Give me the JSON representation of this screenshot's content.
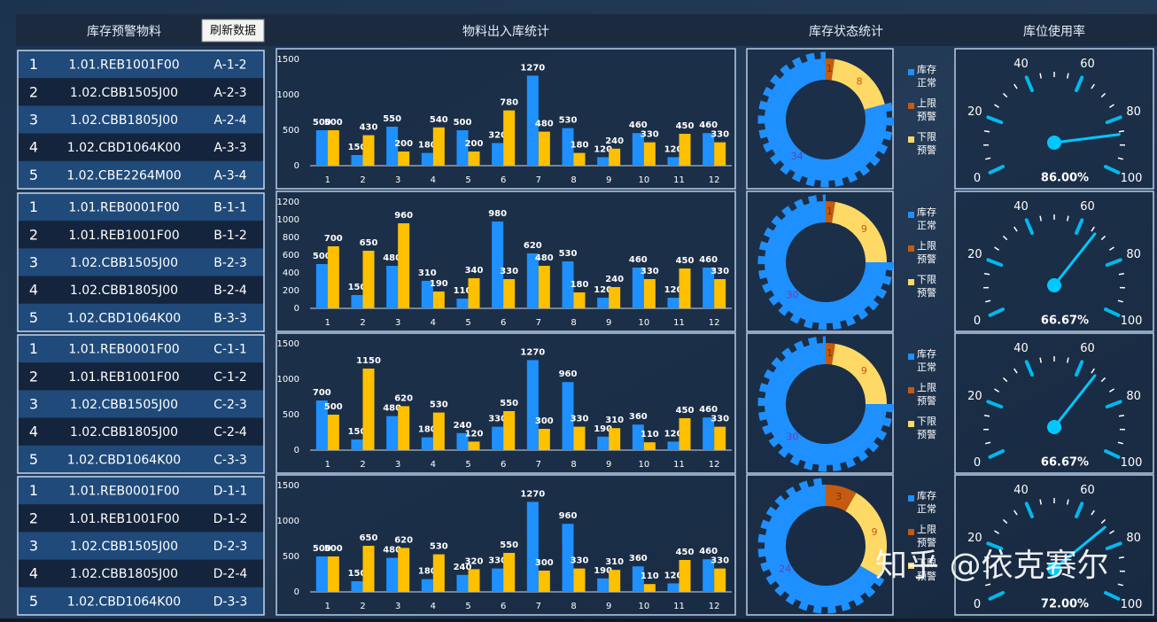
{
  "header": {
    "alert_title": "库存预警物料",
    "refresh_button": "刷新数据",
    "flow_title": "物料出入库统计",
    "status_title": "库存状态统计",
    "usage_title": "库位使用率"
  },
  "alert_table": {
    "groups": [
      {
        "rows": [
          [
            "1",
            "1.01.REB1001F00",
            "A-1-2"
          ],
          [
            "2",
            "1.02.CBB1505J00",
            "A-2-3"
          ],
          [
            "3",
            "1.02.CBB1805J00",
            "A-2-4"
          ],
          [
            "4",
            "1.02.CBD1064K00",
            "A-3-3"
          ],
          [
            "5",
            "1.02.CBE2264M00",
            "A-3-4"
          ]
        ]
      },
      {
        "rows": [
          [
            "1",
            "1.01.REB0001F00",
            "B-1-1"
          ],
          [
            "2",
            "1.01.REB1001F00",
            "B-1-2"
          ],
          [
            "3",
            "1.02.CBB1505J00",
            "B-2-3"
          ],
          [
            "4",
            "1.02.CBB1805J00",
            "B-2-4"
          ],
          [
            "5",
            "1.02.CBD1064K00",
            "B-3-3"
          ]
        ]
      },
      {
        "rows": [
          [
            "1",
            "1.01.REB0001F00",
            "C-1-1"
          ],
          [
            "2",
            "1.01.REB1001F00",
            "C-1-2"
          ],
          [
            "3",
            "1.02.CBB1505J00",
            "C-2-3"
          ],
          [
            "4",
            "1.02.CBB1805J00",
            "C-2-4"
          ],
          [
            "5",
            "1.02.CBD1064K00",
            "C-3-3"
          ]
        ]
      },
      {
        "rows": [
          [
            "1",
            "1.01.REB0001F00",
            "D-1-1"
          ],
          [
            "2",
            "1.01.REB1001F00",
            "D-1-2"
          ],
          [
            "3",
            "1.02.CBB1505J00",
            "D-2-3"
          ],
          [
            "4",
            "1.02.CBB1805J00",
            "D-2-4"
          ],
          [
            "5",
            "1.02.CBD1064K00",
            "D-3-3"
          ]
        ]
      }
    ]
  },
  "chart_data": [
    {
      "type": "bar",
      "categories": [
        "1",
        "2",
        "3",
        "4",
        "5",
        "6",
        "7",
        "8",
        "9",
        "10",
        "11",
        "12"
      ],
      "ylim": [
        0,
        1500
      ],
      "yticks": [
        0,
        500,
        1000,
        1500
      ],
      "series": [
        {
          "color": "#1e90ff",
          "values": [
            500,
            150,
            550,
            180,
            500,
            320,
            1270,
            530,
            120,
            460,
            120,
            460
          ]
        },
        {
          "color": "#ffc000",
          "values": [
            500,
            430,
            200,
            540,
            200,
            780,
            480,
            180,
            240,
            330,
            450,
            330
          ]
        }
      ]
    },
    {
      "type": "bar",
      "categories": [
        "1",
        "2",
        "3",
        "4",
        "5",
        "6",
        "7",
        "8",
        "9",
        "10",
        "11",
        "12"
      ],
      "ylim": [
        0,
        1200
      ],
      "yticks": [
        0,
        200,
        400,
        600,
        800,
        1000,
        1200
      ],
      "series": [
        {
          "color": "#1e90ff",
          "values": [
            500,
            150,
            480,
            310,
            110,
            980,
            620,
            530,
            120,
            460,
            120,
            460
          ]
        },
        {
          "color": "#ffc000",
          "values": [
            700,
            650,
            960,
            190,
            340,
            330,
            480,
            180,
            240,
            330,
            450,
            330
          ]
        }
      ]
    },
    {
      "type": "bar",
      "categories": [
        "1",
        "2",
        "3",
        "4",
        "5",
        "6",
        "7",
        "8",
        "9",
        "10",
        "11",
        "12"
      ],
      "ylim": [
        0,
        1500
      ],
      "yticks": [
        0,
        500,
        1000,
        1500
      ],
      "series": [
        {
          "color": "#1e90ff",
          "values": [
            700,
            150,
            480,
            180,
            240,
            330,
            1270,
            960,
            190,
            360,
            120,
            460
          ]
        },
        {
          "color": "#ffc000",
          "values": [
            500,
            1150,
            620,
            530,
            120,
            550,
            300,
            330,
            310,
            110,
            450,
            330
          ]
        }
      ]
    },
    {
      "type": "bar",
      "categories": [
        "1",
        "2",
        "3",
        "4",
        "5",
        "6",
        "7",
        "8",
        "9",
        "10",
        "11",
        "12"
      ],
      "ylim": [
        0,
        1500
      ],
      "yticks": [
        0,
        500,
        1000,
        1500
      ],
      "series": [
        {
          "color": "#1e90ff",
          "values": [
            500,
            150,
            480,
            180,
            240,
            330,
            1270,
            960,
            190,
            360,
            120,
            460
          ]
        },
        {
          "color": "#ffc000",
          "values": [
            500,
            650,
            620,
            530,
            320,
            550,
            300,
            330,
            310,
            110,
            450,
            330
          ]
        }
      ]
    },
    {
      "type": "pie",
      "categories": [
        "库存正常",
        "上限预警",
        "下限预警"
      ],
      "values": [
        34,
        1,
        8
      ],
      "colors": [
        "#1e90ff",
        "#c55a11",
        "#ffd966"
      ]
    },
    {
      "type": "pie",
      "categories": [
        "库存正常",
        "上限预警",
        "下限预警"
      ],
      "values": [
        30,
        1,
        9
      ],
      "colors": [
        "#1e90ff",
        "#c55a11",
        "#ffd966"
      ]
    },
    {
      "type": "pie",
      "categories": [
        "库存正常",
        "上限预警",
        "下限预警"
      ],
      "values": [
        30,
        1,
        9
      ],
      "colors": [
        "#1e90ff",
        "#c55a11",
        "#ffd966"
      ]
    },
    {
      "type": "pie",
      "categories": [
        "库存正常",
        "上限预警",
        "下限预警"
      ],
      "values": [
        24,
        3,
        9
      ],
      "colors": [
        "#1e90ff",
        "#c55a11",
        "#ffd966"
      ]
    },
    {
      "type": "gauge",
      "values": [
        86
      ],
      "value_labels": [
        "86.00%"
      ],
      "range": [
        0,
        100
      ],
      "ticks": [
        0,
        20,
        40,
        60,
        80,
        100
      ],
      "color": "#00c8ff"
    },
    {
      "type": "gauge",
      "values": [
        66.67
      ],
      "value_labels": [
        "66.67%"
      ],
      "range": [
        0,
        100
      ],
      "ticks": [
        0,
        20,
        40,
        60,
        80,
        100
      ],
      "color": "#00c8ff"
    },
    {
      "type": "gauge",
      "values": [
        66.67
      ],
      "value_labels": [
        "66.67%"
      ],
      "range": [
        0,
        100
      ],
      "ticks": [
        0,
        20,
        40,
        60,
        80,
        100
      ],
      "color": "#00c8ff"
    },
    {
      "type": "gauge",
      "values": [
        72
      ],
      "value_labels": [
        "72.00%"
      ],
      "range": [
        0,
        100
      ],
      "ticks": [
        0,
        20,
        40,
        60,
        80,
        100
      ],
      "color": "#00c8ff"
    }
  ],
  "watermark": "知乎 @依克赛尔"
}
